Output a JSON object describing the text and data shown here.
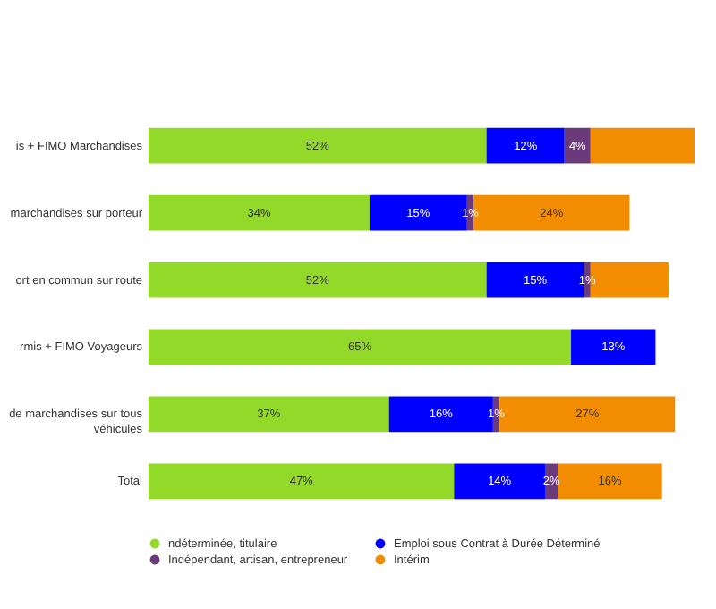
{
  "chart_data": {
    "type": "bar",
    "orientation": "horizontal",
    "stacked": true,
    "legend": "bottom",
    "categories": [
      "is + FIMO Marchandises",
      "marchandises sur porteur",
      "ort en commun sur route",
      "rmis + FIMO Voyageurs",
      "de marchandises sur tous\nvéhicules",
      "Total"
    ],
    "series": [
      {
        "name": "ndéterminée, titulaire",
        "color": "#92d929",
        "values": [
          52,
          34,
          52,
          65,
          37,
          47
        ],
        "value_labels": [
          "52%",
          "34%",
          "52%",
          "65%",
          "37%",
          "47%"
        ]
      },
      {
        "name": "Emploi sous Contrat à Durée Déterminé",
        "color": "#0000ff",
        "values": [
          12,
          15,
          15,
          13,
          16,
          14
        ],
        "value_labels": [
          "12%",
          "15%",
          "15%",
          "13%",
          "16%",
          "14%"
        ]
      },
      {
        "name": "Indépendant, artisan, entrepreneur",
        "color": "#6b3a7a",
        "values": [
          4,
          1,
          1,
          null,
          1,
          2
        ],
        "value_labels": [
          "4%",
          "1%",
          "1%",
          null,
          "1%",
          "2%"
        ]
      },
      {
        "name": "Intérim",
        "color": "#f28c00",
        "values": [
          16,
          24,
          12,
          null,
          27,
          16
        ],
        "value_labels": [
          null,
          "24%",
          null,
          null,
          "27%",
          "16%"
        ]
      }
    ]
  }
}
